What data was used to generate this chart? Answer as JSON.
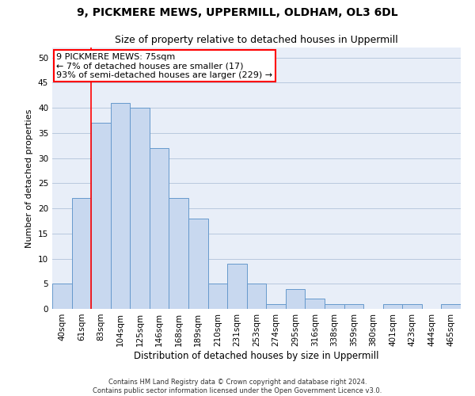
{
  "title1": "9, PICKMERE MEWS, UPPERMILL, OLDHAM, OL3 6DL",
  "title2": "Size of property relative to detached houses in Uppermill",
  "xlabel": "Distribution of detached houses by size in Uppermill",
  "ylabel": "Number of detached properties",
  "categories": [
    "40sqm",
    "61sqm",
    "83sqm",
    "104sqm",
    "125sqm",
    "146sqm",
    "168sqm",
    "189sqm",
    "210sqm",
    "231sqm",
    "253sqm",
    "274sqm",
    "295sqm",
    "316sqm",
    "338sqm",
    "359sqm",
    "380sqm",
    "401sqm",
    "423sqm",
    "444sqm",
    "465sqm"
  ],
  "values": [
    5,
    22,
    37,
    41,
    40,
    32,
    22,
    18,
    5,
    9,
    5,
    1,
    4,
    2,
    1,
    1,
    0,
    1,
    1,
    0,
    1
  ],
  "bar_color": "#c8d8ef",
  "bar_edge_color": "#6699cc",
  "red_line_x": 1.5,
  "annotation_text": "9 PICKMERE MEWS: 75sqm\n← 7% of detached houses are smaller (17)\n93% of semi-detached houses are larger (229) →",
  "annotation_box_color": "white",
  "annotation_box_edge": "red",
  "ylim": [
    0,
    52
  ],
  "yticks": [
    0,
    5,
    10,
    15,
    20,
    25,
    30,
    35,
    40,
    45,
    50
  ],
  "grid_color": "#b8c8de",
  "background_color": "#e8eef8",
  "footer": "Contains HM Land Registry data © Crown copyright and database right 2024.\nContains public sector information licensed under the Open Government Licence v3.0.",
  "title1_fontsize": 10,
  "title2_fontsize": 9,
  "xlabel_fontsize": 8.5,
  "ylabel_fontsize": 8,
  "tick_fontsize": 7.5,
  "annotation_fontsize": 8,
  "footer_fontsize": 6
}
